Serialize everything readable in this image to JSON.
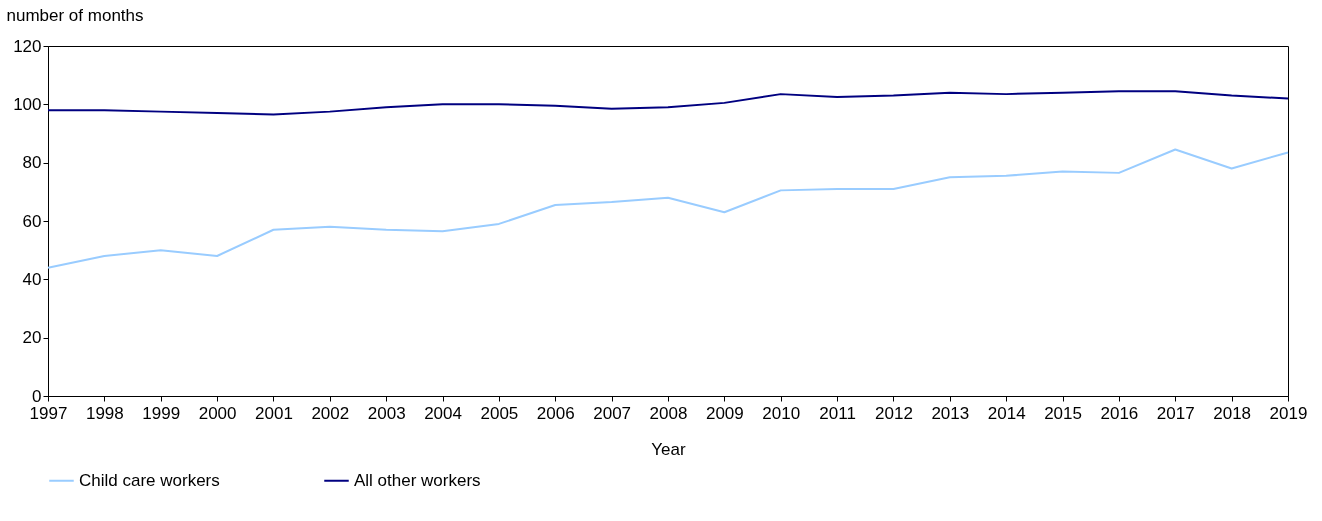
{
  "chart_data": {
    "type": "line",
    "xlabel": "Year",
    "ylabel": "number of months",
    "x": [
      1997,
      1998,
      1999,
      2000,
      2001,
      2002,
      2003,
      2004,
      2005,
      2006,
      2007,
      2008,
      2009,
      2010,
      2011,
      2012,
      2013,
      2014,
      2015,
      2016,
      2017,
      2018,
      2019
    ],
    "series": [
      {
        "name": "Child care workers",
        "color": "#99ccff",
        "values": [
          44,
          48,
          50,
          48,
          57,
          58,
          57,
          56.5,
          59,
          65.5,
          66.5,
          68,
          63,
          70.5,
          71,
          71,
          75,
          75.5,
          77,
          76.5,
          84.5,
          78,
          83.5
        ]
      },
      {
        "name": "All other workers",
        "color": "#000080",
        "values": [
          98,
          98,
          97.5,
          97,
          96.5,
          97.5,
          99,
          100,
          100,
          99.5,
          98.5,
          99,
          100.5,
          103.5,
          102.5,
          103,
          104,
          103.5,
          104,
          104.5,
          104.5,
          103,
          102
        ]
      }
    ],
    "xlim": [
      1997,
      2019
    ],
    "xticks": [
      1997,
      1998,
      1999,
      2000,
      2001,
      2002,
      2003,
      2004,
      2005,
      2006,
      2007,
      2008,
      2009,
      2010,
      2011,
      2012,
      2013,
      2014,
      2015,
      2016,
      2017,
      2018,
      2019
    ],
    "ylim": [
      0,
      120
    ],
    "yticks": [
      0,
      20,
      40,
      60,
      80,
      100,
      120
    ],
    "grid": false,
    "legend": "bottom",
    "marker": "none",
    "line_style": "solid"
  }
}
